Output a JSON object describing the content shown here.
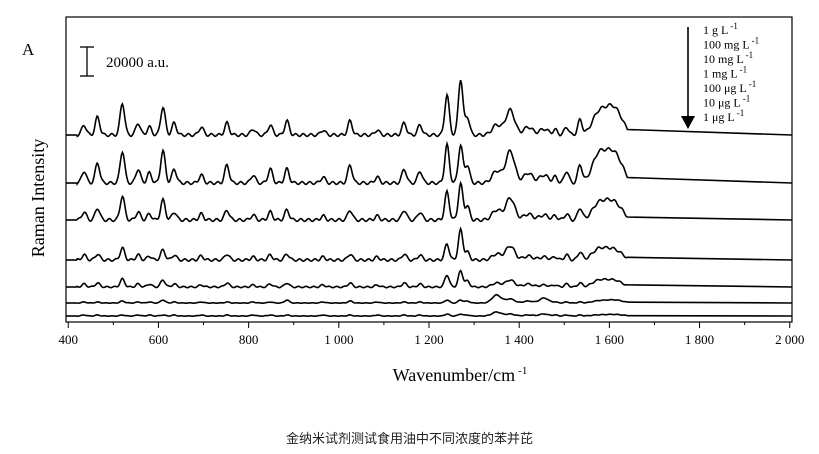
{
  "chart_data": {
    "type": "line",
    "panel_label": "A",
    "xlabel": "Wavenumber/cm",
    "xlabel_sup": "-1",
    "ylabel": "Raman Intensity",
    "xlim": [
      395,
      2005
    ],
    "x_ticks": [
      400,
      600,
      800,
      1000,
      1200,
      1400,
      1600,
      1800,
      2000
    ],
    "x_tick_labels": [
      "400",
      "600",
      "800",
      "1 000",
      "1 200",
      "1 400",
      "1 600",
      "1 800",
      "2 000"
    ],
    "scale_bar_label": "20000 a.u.",
    "legend_order_arrow": "down",
    "data_range": [
      420,
      1640
    ],
    "peak_centers": [
      435,
      465,
      520,
      555,
      580,
      610,
      635,
      695,
      752,
      810,
      848,
      885,
      965,
      1025,
      1085,
      1145,
      1180,
      1240,
      1270,
      1285,
      1350,
      1380,
      1420,
      1455,
      1480,
      1505,
      1535,
      1575,
      1600,
      1620
    ],
    "series": [
      {
        "name": "1 g L",
        "unit_sup": "-1",
        "baseline": 135,
        "heights": [
          10,
          18,
          32,
          12,
          8,
          28,
          12,
          8,
          12,
          6,
          10,
          14,
          5,
          14,
          5,
          12,
          10,
          40,
          56,
          18,
          10,
          25,
          8,
          6,
          5,
          8,
          15,
          20,
          20,
          16
        ]
      },
      {
        "name": "100 mg L",
        "unit_sup": "-1",
        "baseline": 183,
        "heights": [
          12,
          20,
          32,
          14,
          10,
          32,
          14,
          8,
          18,
          8,
          14,
          14,
          6,
          18,
          6,
          14,
          12,
          38,
          38,
          18,
          12,
          32,
          10,
          8,
          6,
          12,
          18,
          26,
          22,
          18
        ]
      },
      {
        "name": "10 mg L",
        "unit_sup": "-1",
        "baseline": 220,
        "heights": [
          8,
          12,
          24,
          8,
          6,
          20,
          8,
          6,
          10,
          5,
          8,
          10,
          4,
          10,
          4,
          10,
          8,
          28,
          36,
          14,
          10,
          22,
          6,
          5,
          4,
          6,
          12,
          15,
          14,
          10
        ]
      },
      {
        "name": "1 mg L",
        "unit_sup": "-1",
        "baseline": 260,
        "heights": [
          5,
          6,
          12,
          5,
          4,
          10,
          5,
          4,
          6,
          3,
          5,
          6,
          3,
          6,
          3,
          6,
          5,
          16,
          30,
          8,
          6,
          14,
          4,
          3,
          3,
          5,
          8,
          10,
          8,
          6
        ]
      },
      {
        "name": "100 μg L",
        "unit_sup": "-1",
        "baseline": 287,
        "heights": [
          3,
          4,
          8,
          3,
          3,
          7,
          3,
          2,
          4,
          2,
          3,
          4,
          2,
          4,
          2,
          4,
          3,
          12,
          16,
          6,
          4,
          7,
          3,
          2,
          2,
          3,
          4,
          6,
          5,
          4
        ]
      },
      {
        "name": "10 μg L",
        "unit_sup": "-1",
        "baseline": 303,
        "heights": [
          1,
          1,
          2,
          1,
          1,
          3,
          1,
          1,
          1,
          1,
          1,
          3,
          1,
          2,
          1,
          1,
          1,
          3,
          3,
          2,
          8,
          4,
          2,
          5,
          1,
          1,
          1,
          2,
          2,
          2
        ]
      },
      {
        "name": "1 μg L",
        "unit_sup": "-1",
        "baseline": 316,
        "heights": [
          1,
          1,
          1,
          1,
          1,
          1,
          1,
          1,
          1,
          1,
          1,
          1,
          1,
          1,
          1,
          1,
          1,
          2,
          2,
          1,
          4,
          2,
          1,
          2,
          1,
          1,
          1,
          1,
          1,
          1
        ]
      }
    ],
    "grid": false
  },
  "caption": "金纳米试剂测试食用油中不同浓度的苯并芘"
}
